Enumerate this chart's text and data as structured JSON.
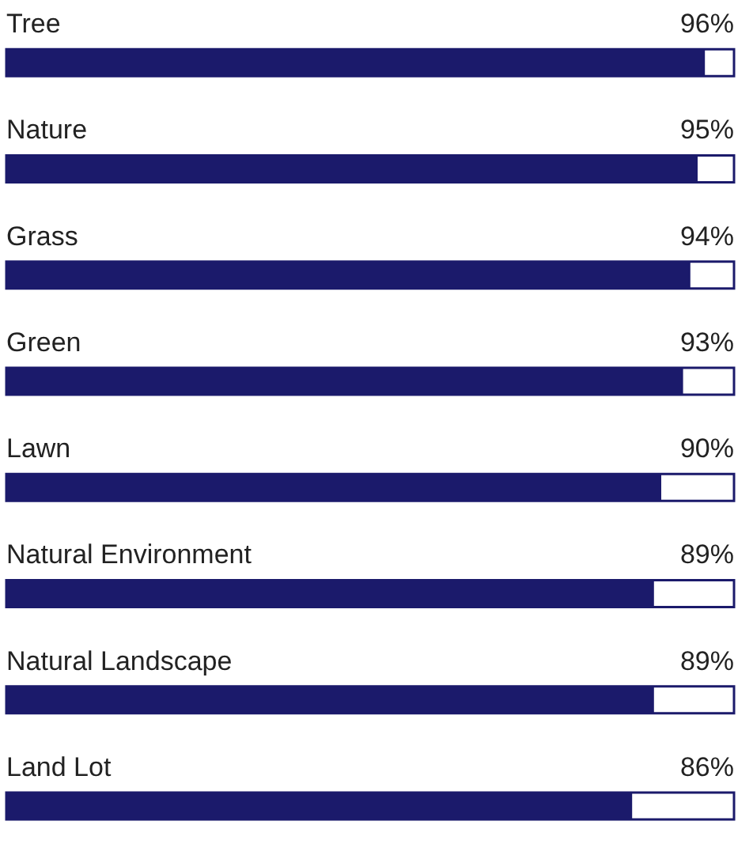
{
  "chart_data": {
    "type": "bar",
    "orientation": "horizontal",
    "categories": [
      "Tree",
      "Nature",
      "Grass",
      "Green",
      "Lawn",
      "Natural Environment",
      "Natural Landscape",
      "Land Lot"
    ],
    "values": [
      96,
      95,
      94,
      93,
      90,
      89,
      89,
      86
    ],
    "value_labels": [
      "96%",
      "95%",
      "94%",
      "93%",
      "90%",
      "89%",
      "89%",
      "86%"
    ],
    "color": "#1b1a6b",
    "xlim": [
      0,
      100
    ],
    "tick_labels": false
  }
}
